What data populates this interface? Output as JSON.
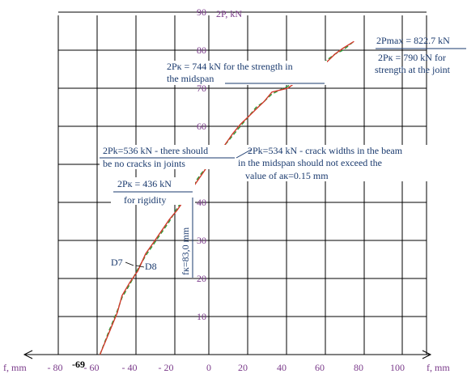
{
  "chart_data": {
    "type": "line",
    "ylabel": "2P, kN",
    "xlabel_left": "f, mm",
    "xlabel_right": "f, mm",
    "x_ticks": [
      -80,
      -60,
      -40,
      -20,
      0,
      20,
      40,
      60,
      80,
      100
    ],
    "y_ticks": [
      10,
      20,
      30,
      40,
      50,
      60,
      70,
      80,
      90
    ],
    "xlim": [
      -85,
      105
    ],
    "ylim": [
      0,
      90
    ],
    "grid": true,
    "x_marker": "-69",
    "series": [
      {
        "name": "D7",
        "color": "#2e9c3a",
        "dash": true,
        "x": [
          -69,
          -63,
          -58,
          -55,
          -50,
          -45,
          -40,
          -35,
          -30,
          -25,
          -20,
          -15,
          -10,
          -5,
          0,
          5,
          10,
          15,
          20,
          25,
          30,
          35,
          40,
          45,
          50,
          55,
          60,
          65,
          70,
          75,
          80,
          85,
          91
        ],
        "y": [
          0,
          6.5,
          11.5,
          15,
          18.5,
          22.5,
          26,
          29,
          32,
          35,
          38.5,
          41.5,
          44.5,
          47.5,
          50,
          52.5,
          55,
          57.5,
          60,
          62.5,
          65,
          66.5,
          68.5,
          69.5,
          70.5,
          72,
          73.5,
          74.5,
          76,
          77.5,
          79,
          80,
          82
        ]
      },
      {
        "name": "D8",
        "color": "#d0392b",
        "dash": false,
        "x": [
          -69,
          -63,
          -58,
          -55,
          -50,
          -45,
          -40,
          -35,
          -30,
          -25,
          -20,
          -15,
          -10,
          -5,
          0,
          5,
          10,
          15,
          20,
          25,
          30,
          35,
          40,
          45,
          50,
          55,
          60,
          65,
          70,
          75,
          80,
          85,
          92
        ],
        "y": [
          0,
          6,
          11,
          15.5,
          19,
          22,
          26.5,
          29.5,
          32.5,
          35.5,
          38,
          41,
          44,
          47,
          50,
          52.5,
          55,
          58,
          60.5,
          62.5,
          64.5,
          66.5,
          69,
          69.5,
          70,
          71.5,
          73,
          75,
          76,
          77,
          79,
          80.5,
          82.3
        ]
      }
    ],
    "annotations": [
      {
        "lines": [
          "2Pmax = 822.7 kN",
          "2Pк = 790 kN for",
          "strength at the joint"
        ]
      },
      {
        "lines": [
          "2Pк = 744 kN for the strength in",
          "the midspan"
        ]
      },
      {
        "lines": [
          "2Pk=536 kN - there should",
          "be no cracks in joints"
        ]
      },
      {
        "lines": [
          "2Pk=534 kN - crack widths in the beam",
          "in the midspan should not exceed the",
          "value of aк=0.15 mm"
        ]
      },
      {
        "lines": [
          "2Pк = 436 kN",
          "for rigidity"
        ]
      },
      {
        "lines": [
          "fк=83,0 mm"
        ]
      }
    ]
  }
}
